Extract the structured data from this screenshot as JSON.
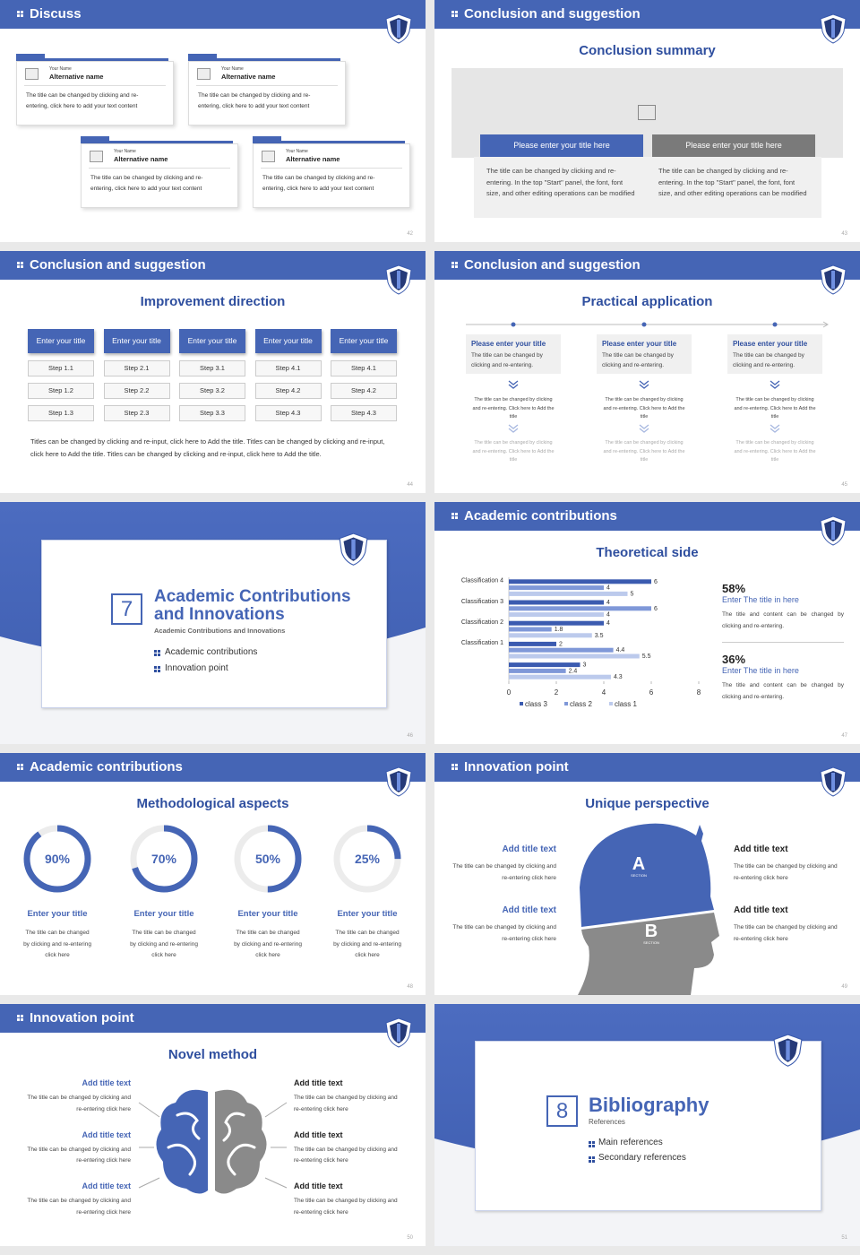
{
  "slides": [
    {
      "page": 42,
      "header": "Discuss",
      "cards": [
        {
          "label": "Your Name",
          "name": "Alternative name",
          "text": "The title can be changed by clicking and re-entering, click here to add your text content"
        },
        {
          "label": "Your Name",
          "name": "Alternative name",
          "text": "The title can be changed by clicking and re-entering, click here to add your text content"
        },
        {
          "label": "Your Name",
          "name": "Alternative name",
          "text": "The title can be changed by clicking and re-entering, click here to add your text content"
        },
        {
          "label": "Your Name",
          "name": "Alternative name",
          "text": "The title can be changed by clicking and re-entering, click here to add your text content"
        }
      ]
    },
    {
      "page": 43,
      "header": "Conclusion and suggestion",
      "title": "Conclusion summary",
      "boxes": [
        {
          "title": "Please enter your title here",
          "text": "The title can be changed by clicking and re-entering. In the top \"Start\" panel, the font, font size, and other editing operations can be modified"
        },
        {
          "title": "Please enter your title here",
          "text": "The title can be changed by clicking and re-entering. In the top \"Start\" panel, the font, font size, and other editing operations can be modified"
        }
      ]
    },
    {
      "page": 44,
      "header": "Conclusion and suggestion",
      "title": "Improvement direction",
      "columns": [
        {
          "title": "Enter your title",
          "steps": [
            "Step 1.1",
            "Step 1.2",
            "Step 1.3"
          ]
        },
        {
          "title": "Enter your title",
          "steps": [
            "Step 2.1",
            "Step 2.2",
            "Step 2.3"
          ]
        },
        {
          "title": "Enter your title",
          "steps": [
            "Step 3.1",
            "Step 3.2",
            "Step 3.3"
          ]
        },
        {
          "title": "Enter your title",
          "steps": [
            "Step 4.1",
            "Step 4.2",
            "Step 4.3"
          ]
        },
        {
          "title": "Enter your title",
          "steps": [
            "Step 4.1",
            "Step 4.2",
            "Step 4.3"
          ]
        }
      ],
      "text": "Titles can be changed by clicking and re-input, click here to Add the title. Titles can be changed by clicking and re-input, click here to Add the title. Titles can be changed by clicking and re-input, click here to Add the title."
    },
    {
      "page": 45,
      "header": "Conclusion and suggestion",
      "title": "Practical application",
      "columns": [
        {
          "title": "Please enter your title",
          "text": "The title can be changed by clicking and re-entering.",
          "notes": [
            "The title can be changed by clicking and re-entering. Click here to Add the title",
            "The title can be changed by clicking and re-entering. Click here to Add the title"
          ]
        },
        {
          "title": "Please enter your title",
          "text": "The title can be changed by clicking and re-entering.",
          "notes": [
            "The title can be changed by clicking and re-entering. Click here to Add the title",
            "The title can be changed by clicking and re-entering. Click here to Add the title"
          ]
        },
        {
          "title": "Please enter your title",
          "text": "The title can be changed by clicking and re-entering.",
          "notes": [
            "The title can be changed by clicking and re-entering. Click here to Add the title",
            "The title can be changed by clicking and re-entering. Click here to Add the title"
          ]
        }
      ]
    },
    {
      "page": 46,
      "number": "7",
      "title": "Academic Contributions and Innovations",
      "subtitle": "Academic Contributions and Innovations",
      "items": [
        "Academic contributions",
        "Innovation point"
      ]
    },
    {
      "page": 47,
      "header": "Academic contributions",
      "title": "Theoretical side",
      "chart_data": {
        "type": "bar",
        "orientation": "horizontal",
        "categories": [
          null,
          "Classification 1",
          "Classification 2",
          "Classification 3",
          "Classification 4"
        ],
        "series": [
          {
            "name": "class 3",
            "color": "#3b5bb0",
            "values": [
              3,
              2,
              4,
              4,
              6
            ]
          },
          {
            "name": "class 2",
            "color": "#7f98d8",
            "values": [
              2.4,
              4.4,
              1.8,
              6,
              4
            ]
          },
          {
            "name": "class 1",
            "color": "#bccaec",
            "values": [
              4.3,
              5.5,
              3.5,
              4,
              5
            ]
          }
        ],
        "xlim": [
          0,
          8
        ],
        "xticks": [
          0,
          2,
          4,
          6,
          8
        ],
        "legend": "bottom"
      },
      "stats": [
        {
          "value": "58%",
          "title": "Enter The title in here",
          "text": "The title and content can be changed by clicking and re-entering."
        },
        {
          "value": "36%",
          "title": "Enter The title in here",
          "text": "The title and content can be changed by clicking and re-entering."
        }
      ]
    },
    {
      "page": 48,
      "header": "Academic contributions",
      "title": "Methodological aspects",
      "items": [
        {
          "percent": {
            "value": 90,
            "label": "90%"
          },
          "title": "Enter your title",
          "text": "The title can be changed by clicking and re-entering click here"
        },
        {
          "percent": {
            "value": 70,
            "label": "70%"
          },
          "title": "Enter your title",
          "text": "The title can be changed by clicking and re-entering click here"
        },
        {
          "percent": {
            "value": 50,
            "label": "50%"
          },
          "title": "Enter your title",
          "text": "The title can be changed by clicking and re-entering click here"
        },
        {
          "percent": {
            "value": 25,
            "label": "25%"
          },
          "title": "Enter your title",
          "text": "The title can be changed by clicking and re-entering click here"
        }
      ]
    },
    {
      "page": 49,
      "header": "Innovation point",
      "title": "Unique perspective",
      "sections": [
        {
          "letter": "A",
          "label": "SECTION"
        },
        {
          "letter": "B",
          "label": "SECTION"
        }
      ],
      "items": [
        {
          "title": "Add title text",
          "text": "The title can be changed by clicking and re-entering click here"
        },
        {
          "title": "Add title text",
          "text": "The title can be changed by clicking and re-entering click here"
        },
        {
          "title": "Add title text",
          "text": "The title can be changed by clicking and re-entering click here"
        },
        {
          "title": "Add title text",
          "text": "The title can be changed by clicking and re-entering click here"
        }
      ]
    },
    {
      "page": 50,
      "header": "Innovation point",
      "title": "Novel method",
      "items": [
        {
          "title": "Add title text",
          "text": "The title can be changed by clicking and re-entering click here"
        },
        {
          "title": "Add title text",
          "text": "The title can be changed by clicking and re-entering click here"
        },
        {
          "title": "Add title text",
          "text": "The title can be changed by clicking and re-entering click here"
        },
        {
          "title": "Add title text",
          "text": "The title can be changed by clicking and re-entering click here"
        },
        {
          "title": "Add title text",
          "text": "The title can be changed by clicking and re-entering click here"
        },
        {
          "title": "Add title text",
          "text": "The title can be changed by clicking and re-entering click here"
        }
      ]
    },
    {
      "page": 51,
      "number": "8",
      "title": "Bibliography",
      "subtitle": "References",
      "items": [
        "Main references",
        "Secondary references"
      ]
    }
  ]
}
